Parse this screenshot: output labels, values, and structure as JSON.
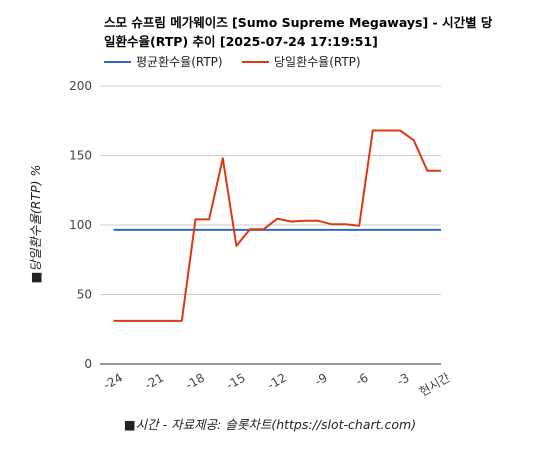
{
  "chart_data": {
    "type": "line",
    "title_line1": "스모 슈프림 메가웨이즈 [Sumo Supreme Megaways] - 시간별 당",
    "title_line2": "일환수율(RTP) 추이 [2025-07-24 17:19:51]",
    "xlabel": "■시간 - 자료제공: 슬롯차트(https://slot-chart.com)",
    "ylabel": "■당일환수율(RTP) %",
    "ylim": [
      0,
      200
    ],
    "yticks": [
      0,
      50,
      100,
      150,
      200
    ],
    "x_range": [
      -25,
      0
    ],
    "xticks": [
      {
        "value": -24,
        "label": "-24"
      },
      {
        "value": -21,
        "label": "-21"
      },
      {
        "value": -18,
        "label": "-18"
      },
      {
        "value": -15,
        "label": "-15"
      },
      {
        "value": -12,
        "label": "-12"
      },
      {
        "value": -9,
        "label": "-9"
      },
      {
        "value": -6,
        "label": "-6"
      },
      {
        "value": -3,
        "label": "-3"
      },
      {
        "value": 0,
        "label": "현시간"
      }
    ],
    "grid": true,
    "legend_position": "top",
    "series": [
      {
        "name": "평균환수율(RTP)",
        "color": "#3366cc",
        "x": [
          -24,
          0
        ],
        "y": [
          96.5,
          96.5
        ]
      },
      {
        "name": "당일환수율(RTP)",
        "color": "#dc3912",
        "x": [
          -24,
          -23,
          -22,
          -21,
          -20,
          -19,
          -18,
          -17,
          -16,
          -15,
          -14,
          -13,
          -12,
          -11,
          -10,
          -9,
          -8,
          -7,
          -6,
          -5,
          -4,
          -3,
          -2,
          -1,
          0
        ],
        "y": [
          31,
          31,
          31,
          31,
          31,
          31,
          104,
          104,
          148,
          85,
          97,
          97,
          104.5,
          102.5,
          103,
          103,
          100.5,
          100.5,
          99.5,
          168,
          168,
          168,
          161,
          139,
          139
        ]
      }
    ]
  }
}
